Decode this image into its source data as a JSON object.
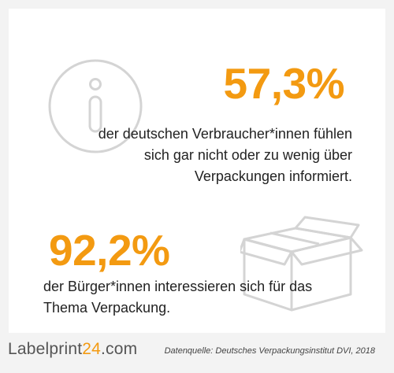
{
  "stat_1": {
    "value": "57,3%",
    "text_line_1": "der deutschen Verbraucher*innen fühlen",
    "text_line_2": "sich gar nicht oder zu wenig über",
    "text_line_3": "Verpackungen informiert."
  },
  "stat_2": {
    "value": "92,2%",
    "text_line_1": "der Bürger*innen interessieren sich für das",
    "text_line_2": "Thema Verpackung."
  },
  "footer": {
    "logo_part_1": "Labelprint",
    "logo_part_2": "24",
    "logo_part_3": ".com",
    "source": "Datenquelle: Deutsches Verpackungsinstitut DVI, 2018"
  },
  "icons": {
    "info": "info-icon",
    "box": "box-icon"
  },
  "colors": {
    "accent": "#f39a11",
    "text": "#222222",
    "icon": "#d4d4d4",
    "background": "#f3f3f3",
    "card": "#ffffff"
  }
}
